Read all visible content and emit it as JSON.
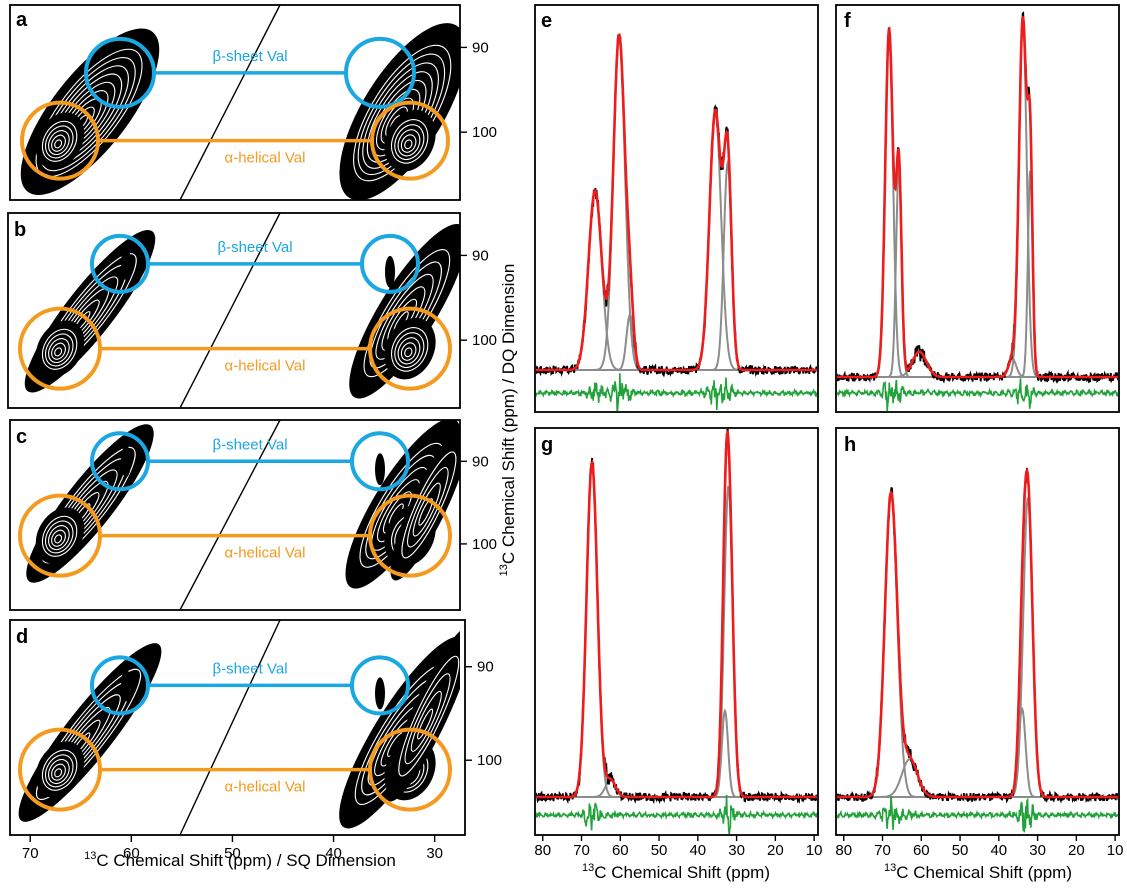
{
  "colors": {
    "beta_sheet": "#1ba7e1",
    "alpha_helix": "#f39a1f",
    "experimental": "#000000",
    "fit": "#ee1c1c",
    "component": "#8c8c8c",
    "residual": "#22a23a"
  },
  "left_column": {
    "panels": [
      {
        "letter": "a",
        "beta_label": "β-sheet Val",
        "alpha_label": "α-helical Val",
        "ticks": [
          "90",
          "100"
        ]
      },
      {
        "letter": "b",
        "beta_label": "β-sheet Val",
        "alpha_label": "α-helical Val",
        "ticks": [
          "90",
          "100"
        ]
      },
      {
        "letter": "c",
        "beta_label": "β-sheet Val",
        "alpha_label": "α-helical Val",
        "ticks": [
          "90",
          "100"
        ]
      },
      {
        "letter": "d",
        "beta_label": "β-sheet Val",
        "alpha_label": "α-helical Val",
        "ticks": [
          "90",
          "100"
        ]
      }
    ],
    "x_ticks": [
      "70",
      "60",
      "50",
      "40",
      "30"
    ],
    "x_label_sup": "13",
    "x_label": "C Chemical Shift (ppm) / SQ Dimension",
    "y_label_sup": "13",
    "y_label": "C Chemical Shift (ppm) / DQ Dimension"
  },
  "right_column": {
    "panels": [
      {
        "letter": "e"
      },
      {
        "letter": "f"
      },
      {
        "letter": "g"
      },
      {
        "letter": "h"
      }
    ],
    "x_ticks": [
      "80",
      "70",
      "60",
      "50",
      "40",
      "30",
      "20",
      "10"
    ],
    "x_label_sup": "13",
    "x_label": "C Chemical Shift (ppm)"
  },
  "chart_data": [
    {
      "panel": "a",
      "type": "contour",
      "xlim": [
        72,
        27
      ],
      "ylim": [
        108,
        85
      ],
      "regions": [
        {
          "name": "β-sheet Val",
          "points": [
            [
              61,
              93
            ],
            [
              35,
              93
            ]
          ]
        },
        {
          "name": "α-helical Val",
          "points": [
            [
              67,
              101
            ],
            [
              32,
              101
            ]
          ]
        }
      ]
    },
    {
      "panel": "b",
      "type": "contour",
      "xlim": [
        72,
        27
      ],
      "ylim": [
        108,
        85
      ],
      "regions": [
        {
          "name": "β-sheet Val",
          "points": [
            [
              61,
              91
            ],
            [
              34,
              91
            ]
          ]
        },
        {
          "name": "α-helical Val",
          "points": [
            [
              67,
              101
            ],
            [
              32,
              101
            ]
          ]
        }
      ]
    },
    {
      "panel": "c",
      "type": "contour",
      "xlim": [
        72,
        27
      ],
      "ylim": [
        108,
        85
      ],
      "regions": [
        {
          "name": "β-sheet Val",
          "points": [
            [
              61,
              90
            ],
            [
              35,
              90
            ]
          ]
        },
        {
          "name": "α-helical Val",
          "points": [
            [
              67,
              99
            ],
            [
              32,
              99
            ]
          ]
        }
      ]
    },
    {
      "panel": "d",
      "type": "contour",
      "xlim": [
        72,
        27
      ],
      "ylim": [
        108,
        85
      ],
      "regions": [
        {
          "name": "β-sheet Val",
          "points": [
            [
              61,
              92
            ],
            [
              35,
              92
            ]
          ]
        },
        {
          "name": "α-helical Val",
          "points": [
            [
              67,
              101
            ],
            [
              32,
              101
            ]
          ]
        }
      ]
    },
    {
      "panel": "e",
      "type": "line",
      "xlim": [
        82,
        9
      ],
      "peaks": [
        {
          "center": 66.5,
          "height": 0.52,
          "width": 1.7
        },
        {
          "center": 60.3,
          "height": 0.97,
          "width": 1.5
        },
        {
          "center": 57.5,
          "height": 0.16,
          "width": 0.9
        },
        {
          "center": 35.5,
          "height": 0.75,
          "width": 1.5
        },
        {
          "center": 32.3,
          "height": 0.6,
          "width": 1.0
        }
      ]
    },
    {
      "panel": "f",
      "type": "line",
      "xlim": [
        82,
        9
      ],
      "peaks": [
        {
          "center": 68.3,
          "height": 0.96,
          "width": 1.0
        },
        {
          "center": 65.8,
          "height": 0.58,
          "width": 0.7
        },
        {
          "center": 60.5,
          "height": 0.07,
          "width": 1.8
        },
        {
          "center": 33.8,
          "height": 0.99,
          "width": 1.0
        },
        {
          "center": 31.9,
          "height": 0.57,
          "width": 0.6
        },
        {
          "center": 36.5,
          "height": 0.05,
          "width": 1.0
        }
      ]
    },
    {
      "panel": "g",
      "type": "line",
      "xlim": [
        82,
        9
      ],
      "peaks": [
        {
          "center": 67.3,
          "height": 0.97,
          "width": 1.4
        },
        {
          "center": 62.5,
          "height": 0.05,
          "width": 1.3
        },
        {
          "center": 33.0,
          "height": 0.25,
          "width": 0.8
        },
        {
          "center": 32.1,
          "height": 0.9,
          "width": 1.1
        }
      ]
    },
    {
      "panel": "h",
      "type": "line",
      "xlim": [
        82,
        9
      ],
      "peaks": [
        {
          "center": 67.8,
          "height": 0.96,
          "width": 1.6
        },
        {
          "center": 63.0,
          "height": 0.12,
          "width": 2.0
        },
        {
          "center": 34.0,
          "height": 0.28,
          "width": 0.9
        },
        {
          "center": 32.5,
          "height": 0.95,
          "width": 1.2
        }
      ]
    }
  ]
}
